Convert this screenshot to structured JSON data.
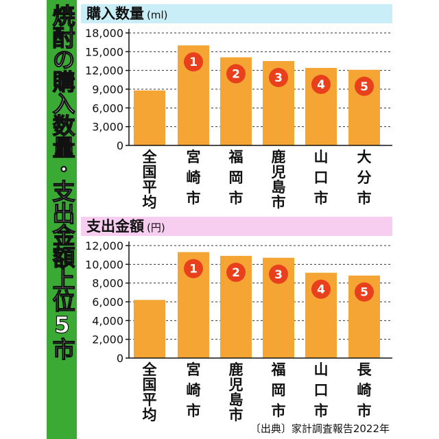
{
  "side_title": "焼酎の購入数量・支出金額上位5市",
  "source": "〔出典〕家計調査報告2022年",
  "colors": {
    "bar": "#f5a533",
    "rank": "#e8401c",
    "side_band": "#3aaa35",
    "header1_bg": "#c9eef7",
    "header2_bg": "#f7cdf0"
  },
  "chart_data": [
    {
      "type": "bar",
      "title": "購入数量",
      "unit": "(ml)",
      "categories": [
        "全国平均",
        "宮崎市",
        "福岡市",
        "鹿児島市",
        "山口市",
        "大分市"
      ],
      "values": [
        8800,
        16000,
        14100,
        13500,
        12400,
        12100
      ],
      "ranks": [
        "",
        "1",
        "2",
        "3",
        "4",
        "5"
      ],
      "yticks": [
        "18,000",
        "15,000",
        "12,000",
        "9,000",
        "6,000",
        "3,000",
        "0"
      ],
      "ylim": [
        0,
        18000
      ],
      "grid": true
    },
    {
      "type": "bar",
      "title": "支出金額",
      "unit": "(円)",
      "categories": [
        "全国平均",
        "宮崎市",
        "鹿児島市",
        "福岡市",
        "山口市",
        "長崎市"
      ],
      "values": [
        6200,
        11300,
        10900,
        10700,
        9100,
        8800
      ],
      "ranks": [
        "",
        "1",
        "2",
        "3",
        "4",
        "5"
      ],
      "yticks": [
        "12,000",
        "10,000",
        "8,000",
        "6,000",
        "4,000",
        "2,000",
        "0"
      ],
      "ylim": [
        0,
        12000
      ],
      "grid": true
    }
  ]
}
